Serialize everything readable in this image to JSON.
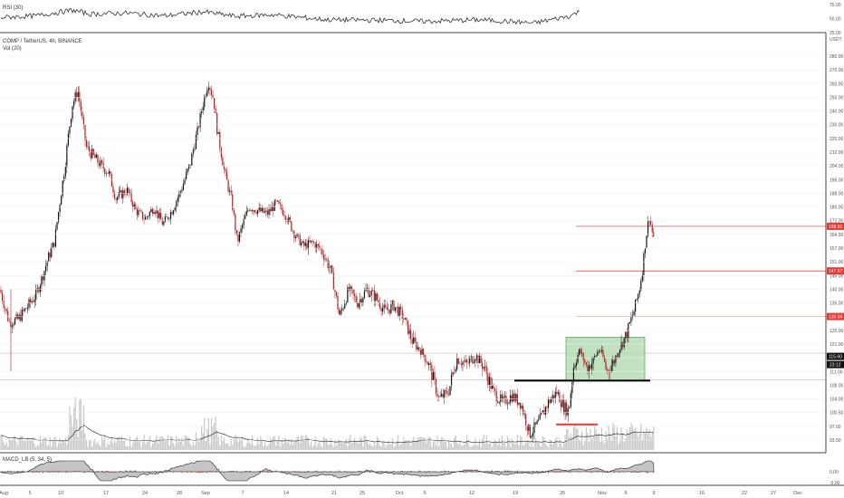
{
  "header": {
    "title": "COMP / TetherUS, 4h, BINANCE",
    "volume_label": "Vol (20)",
    "rsi_label": "RSI (30)",
    "macd_label": "MACD_LB (5, 34, 5)",
    "currency": "USDT"
  },
  "colors": {
    "up": "#111111",
    "down": "#b71c1c",
    "level_line": "#e53935",
    "level_tag": "#e53935",
    "box_fill": "#a5d6a7",
    "box_border": "#388e3c",
    "volume": "#c8c8c8",
    "grid": "#f0f0f0"
  },
  "chart_data": [
    {
      "type": "candlestick",
      "name": "price",
      "title": "COMP / TetherUS, 4h, BINANCE",
      "ylim": [
        90,
        290
      ],
      "y_ticks": [
        93.5,
        97.0,
        100.5,
        104.0,
        108.0,
        111.0,
        115.0,
        121.0,
        125.0,
        130.0,
        135.0,
        140.0,
        146.0,
        151.0,
        157.0,
        164.5,
        172.0,
        180.0,
        188.0,
        196.0,
        204.0,
        212.0,
        220.0,
        230.0,
        240.0,
        250.0,
        260.0,
        270.0,
        280.0
      ],
      "y_tick_labels": [
        "93.50",
        "97.00",
        "100.50",
        "104.00",
        "108.00",
        "111.00",
        "115.00",
        "121.00",
        "125.00",
        "130.00",
        "135.00",
        "140.00",
        "146.00",
        "151.00",
        "157.00",
        "164.50",
        "172.00",
        "180.00",
        "188.00",
        "196.00",
        "204.00",
        "212.00",
        "220.00",
        "230.00",
        "240.00",
        "250.00",
        "260.00",
        "270.00",
        "280.00"
      ],
      "x_ticks": [
        "Aug",
        "5",
        "10",
        "17",
        "24",
        "28",
        "Sep",
        "7",
        "14",
        "21",
        "25",
        "Oct",
        "5",
        "12",
        "19",
        "26",
        "Nov",
        "5",
        "9",
        "16",
        "22",
        "27",
        "Dec"
      ],
      "anchors": [
        {
          "x": 0,
          "y": 140
        },
        {
          "x": 10,
          "y": 128
        },
        {
          "x": 20,
          "y": 129
        },
        {
          "x": 40,
          "y": 138
        },
        {
          "x": 60,
          "y": 160
        },
        {
          "x": 72,
          "y": 205
        },
        {
          "x": 80,
          "y": 245
        },
        {
          "x": 86,
          "y": 255
        },
        {
          "x": 95,
          "y": 215
        },
        {
          "x": 110,
          "y": 205
        },
        {
          "x": 120,
          "y": 200
        },
        {
          "x": 128,
          "y": 185
        },
        {
          "x": 140,
          "y": 190
        },
        {
          "x": 150,
          "y": 178
        },
        {
          "x": 160,
          "y": 173
        },
        {
          "x": 170,
          "y": 180
        },
        {
          "x": 180,
          "y": 170
        },
        {
          "x": 190,
          "y": 178
        },
        {
          "x": 200,
          "y": 190
        },
        {
          "x": 210,
          "y": 205
        },
        {
          "x": 218,
          "y": 225
        },
        {
          "x": 224,
          "y": 245
        },
        {
          "x": 230,
          "y": 262
        },
        {
          "x": 236,
          "y": 248
        },
        {
          "x": 240,
          "y": 225
        },
        {
          "x": 248,
          "y": 200
        },
        {
          "x": 256,
          "y": 183
        },
        {
          "x": 262,
          "y": 160
        },
        {
          "x": 268,
          "y": 170
        },
        {
          "x": 275,
          "y": 180
        },
        {
          "x": 285,
          "y": 178
        },
        {
          "x": 295,
          "y": 176
        },
        {
          "x": 305,
          "y": 182
        },
        {
          "x": 315,
          "y": 176
        },
        {
          "x": 325,
          "y": 165
        },
        {
          "x": 335,
          "y": 158
        },
        {
          "x": 345,
          "y": 160
        },
        {
          "x": 355,
          "y": 156
        },
        {
          "x": 365,
          "y": 148
        },
        {
          "x": 375,
          "y": 130
        },
        {
          "x": 385,
          "y": 140
        },
        {
          "x": 395,
          "y": 135
        },
        {
          "x": 405,
          "y": 140
        },
        {
          "x": 415,
          "y": 137
        },
        {
          "x": 425,
          "y": 132
        },
        {
          "x": 435,
          "y": 134
        },
        {
          "x": 445,
          "y": 130
        },
        {
          "x": 455,
          "y": 122
        },
        {
          "x": 465,
          "y": 118
        },
        {
          "x": 475,
          "y": 112
        },
        {
          "x": 485,
          "y": 104
        },
        {
          "x": 495,
          "y": 106
        },
        {
          "x": 505,
          "y": 115
        },
        {
          "x": 515,
          "y": 113
        },
        {
          "x": 525,
          "y": 116
        },
        {
          "x": 535,
          "y": 112
        },
        {
          "x": 545,
          "y": 106
        },
        {
          "x": 555,
          "y": 103
        },
        {
          "x": 565,
          "y": 105
        },
        {
          "x": 575,
          "y": 103
        },
        {
          "x": 585,
          "y": 95
        },
        {
          "x": 595,
          "y": 98
        },
        {
          "x": 605,
          "y": 103
        },
        {
          "x": 615,
          "y": 106
        },
        {
          "x": 622,
          "y": 102
        },
        {
          "x": 628,
          "y": 101
        },
        {
          "x": 633,
          "y": 112
        },
        {
          "x": 640,
          "y": 118
        },
        {
          "x": 648,
          "y": 112
        },
        {
          "x": 655,
          "y": 114
        },
        {
          "x": 662,
          "y": 119
        },
        {
          "x": 670,
          "y": 111
        },
        {
          "x": 678,
          "y": 114
        },
        {
          "x": 685,
          "y": 120
        },
        {
          "x": 692,
          "y": 124
        },
        {
          "x": 700,
          "y": 132
        },
        {
          "x": 706,
          "y": 140
        },
        {
          "x": 710,
          "y": 150
        },
        {
          "x": 714,
          "y": 165
        },
        {
          "x": 717,
          "y": 175
        },
        {
          "x": 720,
          "y": 166
        },
        {
          "x": 722,
          "y": 163
        }
      ],
      "horizontal_levels": [
        {
          "value": 168.91,
          "label": "168.91",
          "style": "tag-red"
        },
        {
          "value": 147.67,
          "label": "147.67",
          "style": "tag-red"
        },
        {
          "value": 130.04,
          "label": "130.04",
          "style": "tag-red"
        },
        {
          "value": 115.6,
          "label": "115.60",
          "style": "tag-black"
        }
      ],
      "extra_price_labels": [
        {
          "text": "23:12",
          "style": "tag-black"
        }
      ],
      "support_line": {
        "x_from": 568,
        "x_to": 718,
        "value": 109
      },
      "red_marker": {
        "x_from": 614,
        "x_to": 660,
        "value": 97.5
      },
      "box": {
        "x_from": 625,
        "x_to": 712,
        "y_from": 109,
        "y_to": 123
      },
      "grey_lines": [
        {
          "value": 117
        },
        {
          "value": 109.2
        }
      ]
    },
    {
      "type": "line",
      "name": "rsi",
      "title": "RSI (30)",
      "ylim": [
        25,
        80
      ],
      "y_tick_labels": [
        "75.00",
        "50.00",
        "25.00"
      ],
      "y_ticks": [
        75,
        50,
        25
      ],
      "trend_points": [
        [
          0,
          52
        ],
        [
          40,
          55
        ],
        [
          80,
          65
        ],
        [
          100,
          58
        ],
        [
          140,
          60
        ],
        [
          180,
          55
        ],
        [
          225,
          62
        ],
        [
          260,
          54
        ],
        [
          300,
          57
        ],
        [
          360,
          48
        ],
        [
          420,
          47
        ],
        [
          470,
          45
        ],
        [
          530,
          48
        ],
        [
          590,
          42
        ],
        [
          630,
          55
        ],
        [
          640,
          63
        ]
      ]
    },
    {
      "type": "bar",
      "name": "volume",
      "title": "Vol (20)"
    },
    {
      "type": "area",
      "name": "macd",
      "title": "MACD_LB (5, 34, 5)",
      "y_tick_labels": [
        "0.00",
        "-5.00"
      ],
      "y_ticks": [
        0,
        -5
      ]
    }
  ]
}
